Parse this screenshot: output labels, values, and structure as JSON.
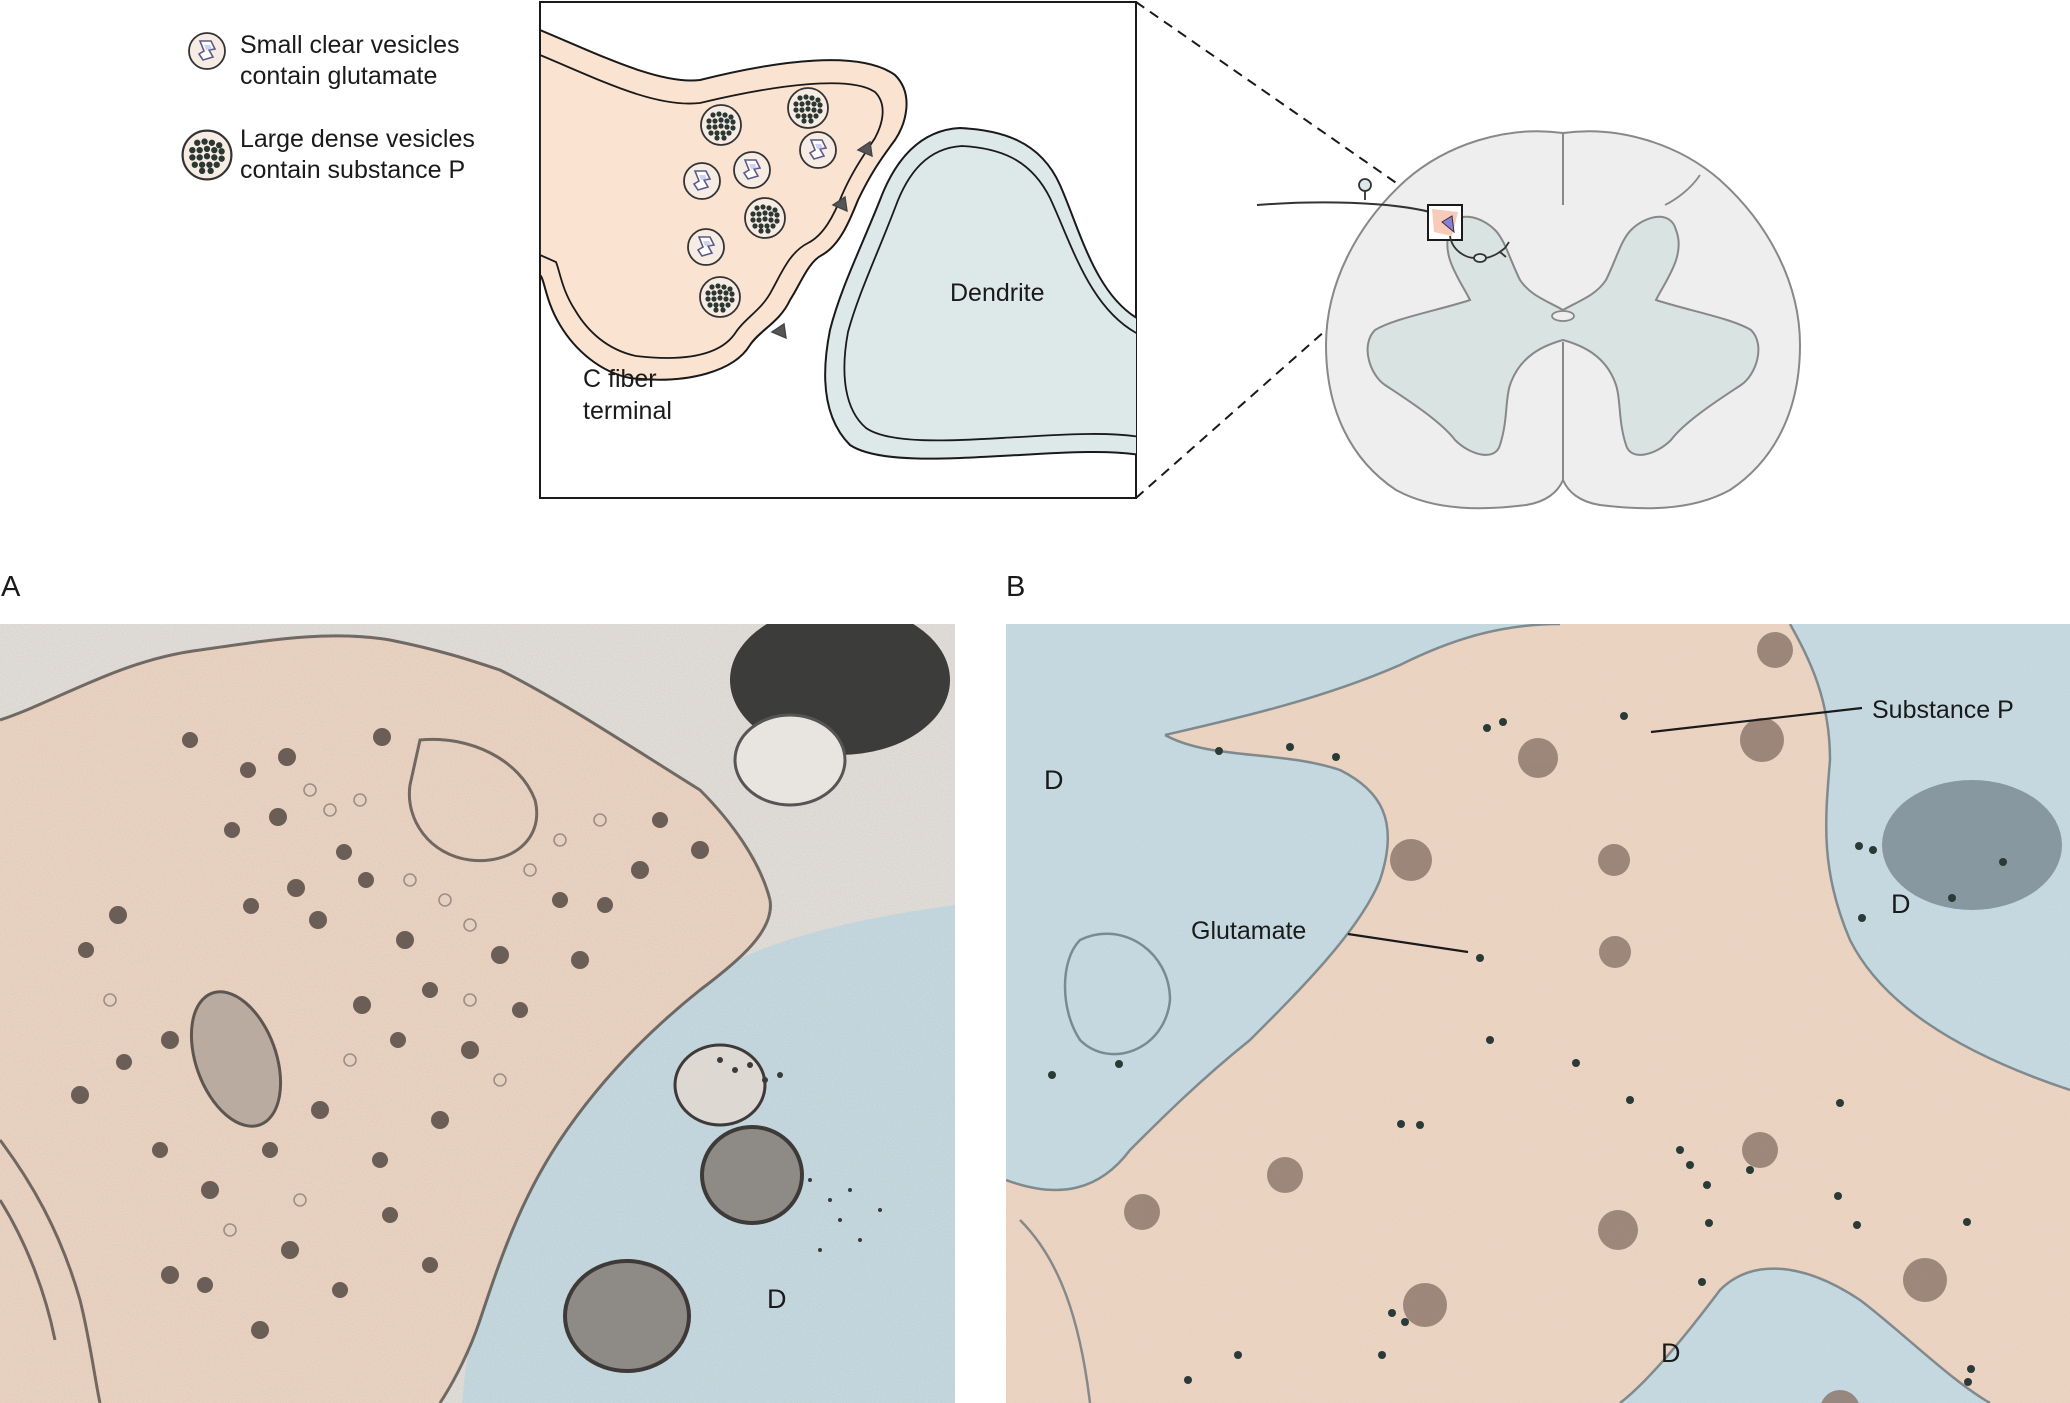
{
  "legend": {
    "small_vesicles": [
      "Small clear vesicles",
      "contain glutamate"
    ],
    "large_vesicles": [
      "Large dense vesicles",
      "contain substance P"
    ]
  },
  "inset": {
    "terminal_label": [
      "C fiber",
      "terminal"
    ],
    "dendrite_label": "Dendrite"
  },
  "panel_a": {
    "letter": "A",
    "dendrite_label": "D"
  },
  "panel_b": {
    "letter": "B",
    "substance_p_label": "Substance P",
    "glutamate_label": "Glutamate",
    "dendrite_labels": [
      "D",
      "D",
      "D"
    ]
  },
  "colors": {
    "terminal_fill": "#fbe3d2",
    "terminal_stroke": "#1a1a1a",
    "dendrite_fill": "#dde8e8",
    "gray_matter": "#d9e3e2",
    "cord_white": "#eeeeee",
    "em_terminal": "#f3d9c6",
    "em_dendrite": "#c9dfe8",
    "dense_vesicle": "#2a3a36"
  },
  "icons": {
    "small_vesicle": "small-clear-vesicle-icon",
    "large_vesicle": "large-dense-vesicle-icon"
  }
}
